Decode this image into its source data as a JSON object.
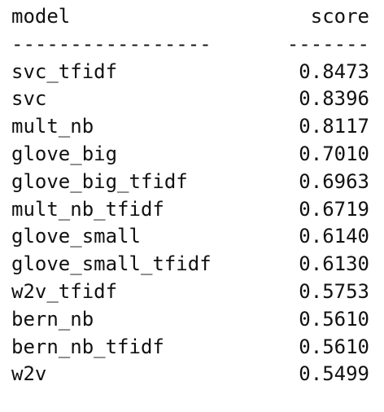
{
  "table": {
    "header": {
      "model": "model",
      "score": "score"
    },
    "separator": {
      "model": "-----------------",
      "score": "-------"
    },
    "rows": [
      {
        "model": "svc_tfidf",
        "score": "0.8473"
      },
      {
        "model": "svc",
        "score": "0.8396"
      },
      {
        "model": "mult_nb",
        "score": "0.8117"
      },
      {
        "model": "glove_big",
        "score": "0.7010"
      },
      {
        "model": "glove_big_tfidf",
        "score": "0.6963"
      },
      {
        "model": "mult_nb_tfidf",
        "score": "0.6719"
      },
      {
        "model": "glove_small",
        "score": "0.6140"
      },
      {
        "model": "glove_small_tfidf",
        "score": "0.6130"
      },
      {
        "model": "w2v_tfidf",
        "score": "0.5753"
      },
      {
        "model": "bern_nb",
        "score": "0.5610"
      },
      {
        "model": "bern_nb_tfidf",
        "score": "0.5610"
      },
      {
        "model": "w2v",
        "score": "0.5499"
      }
    ]
  }
}
